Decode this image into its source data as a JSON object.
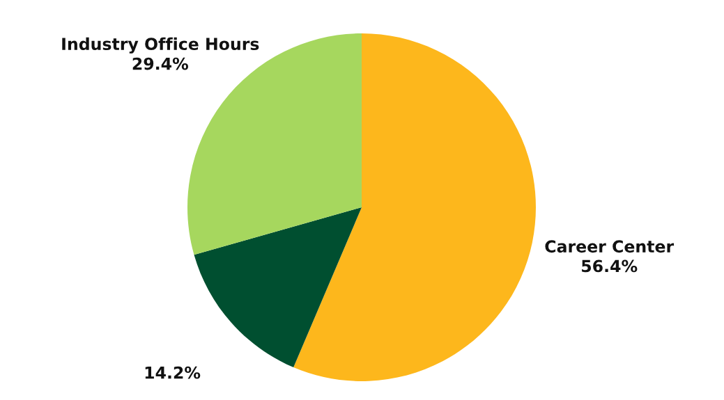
{
  "chart_data": {
    "type": "pie",
    "categories": [
      "Career Center",
      null,
      "Industry Office Hours"
    ],
    "values": [
      56.4,
      14.2,
      29.4
    ],
    "colors": [
      "#fdb71c",
      "#004f30",
      "#a6d75e"
    ],
    "value_labels": [
      "56.4%",
      "14.2%",
      "29.4%"
    ],
    "legend": false
  }
}
